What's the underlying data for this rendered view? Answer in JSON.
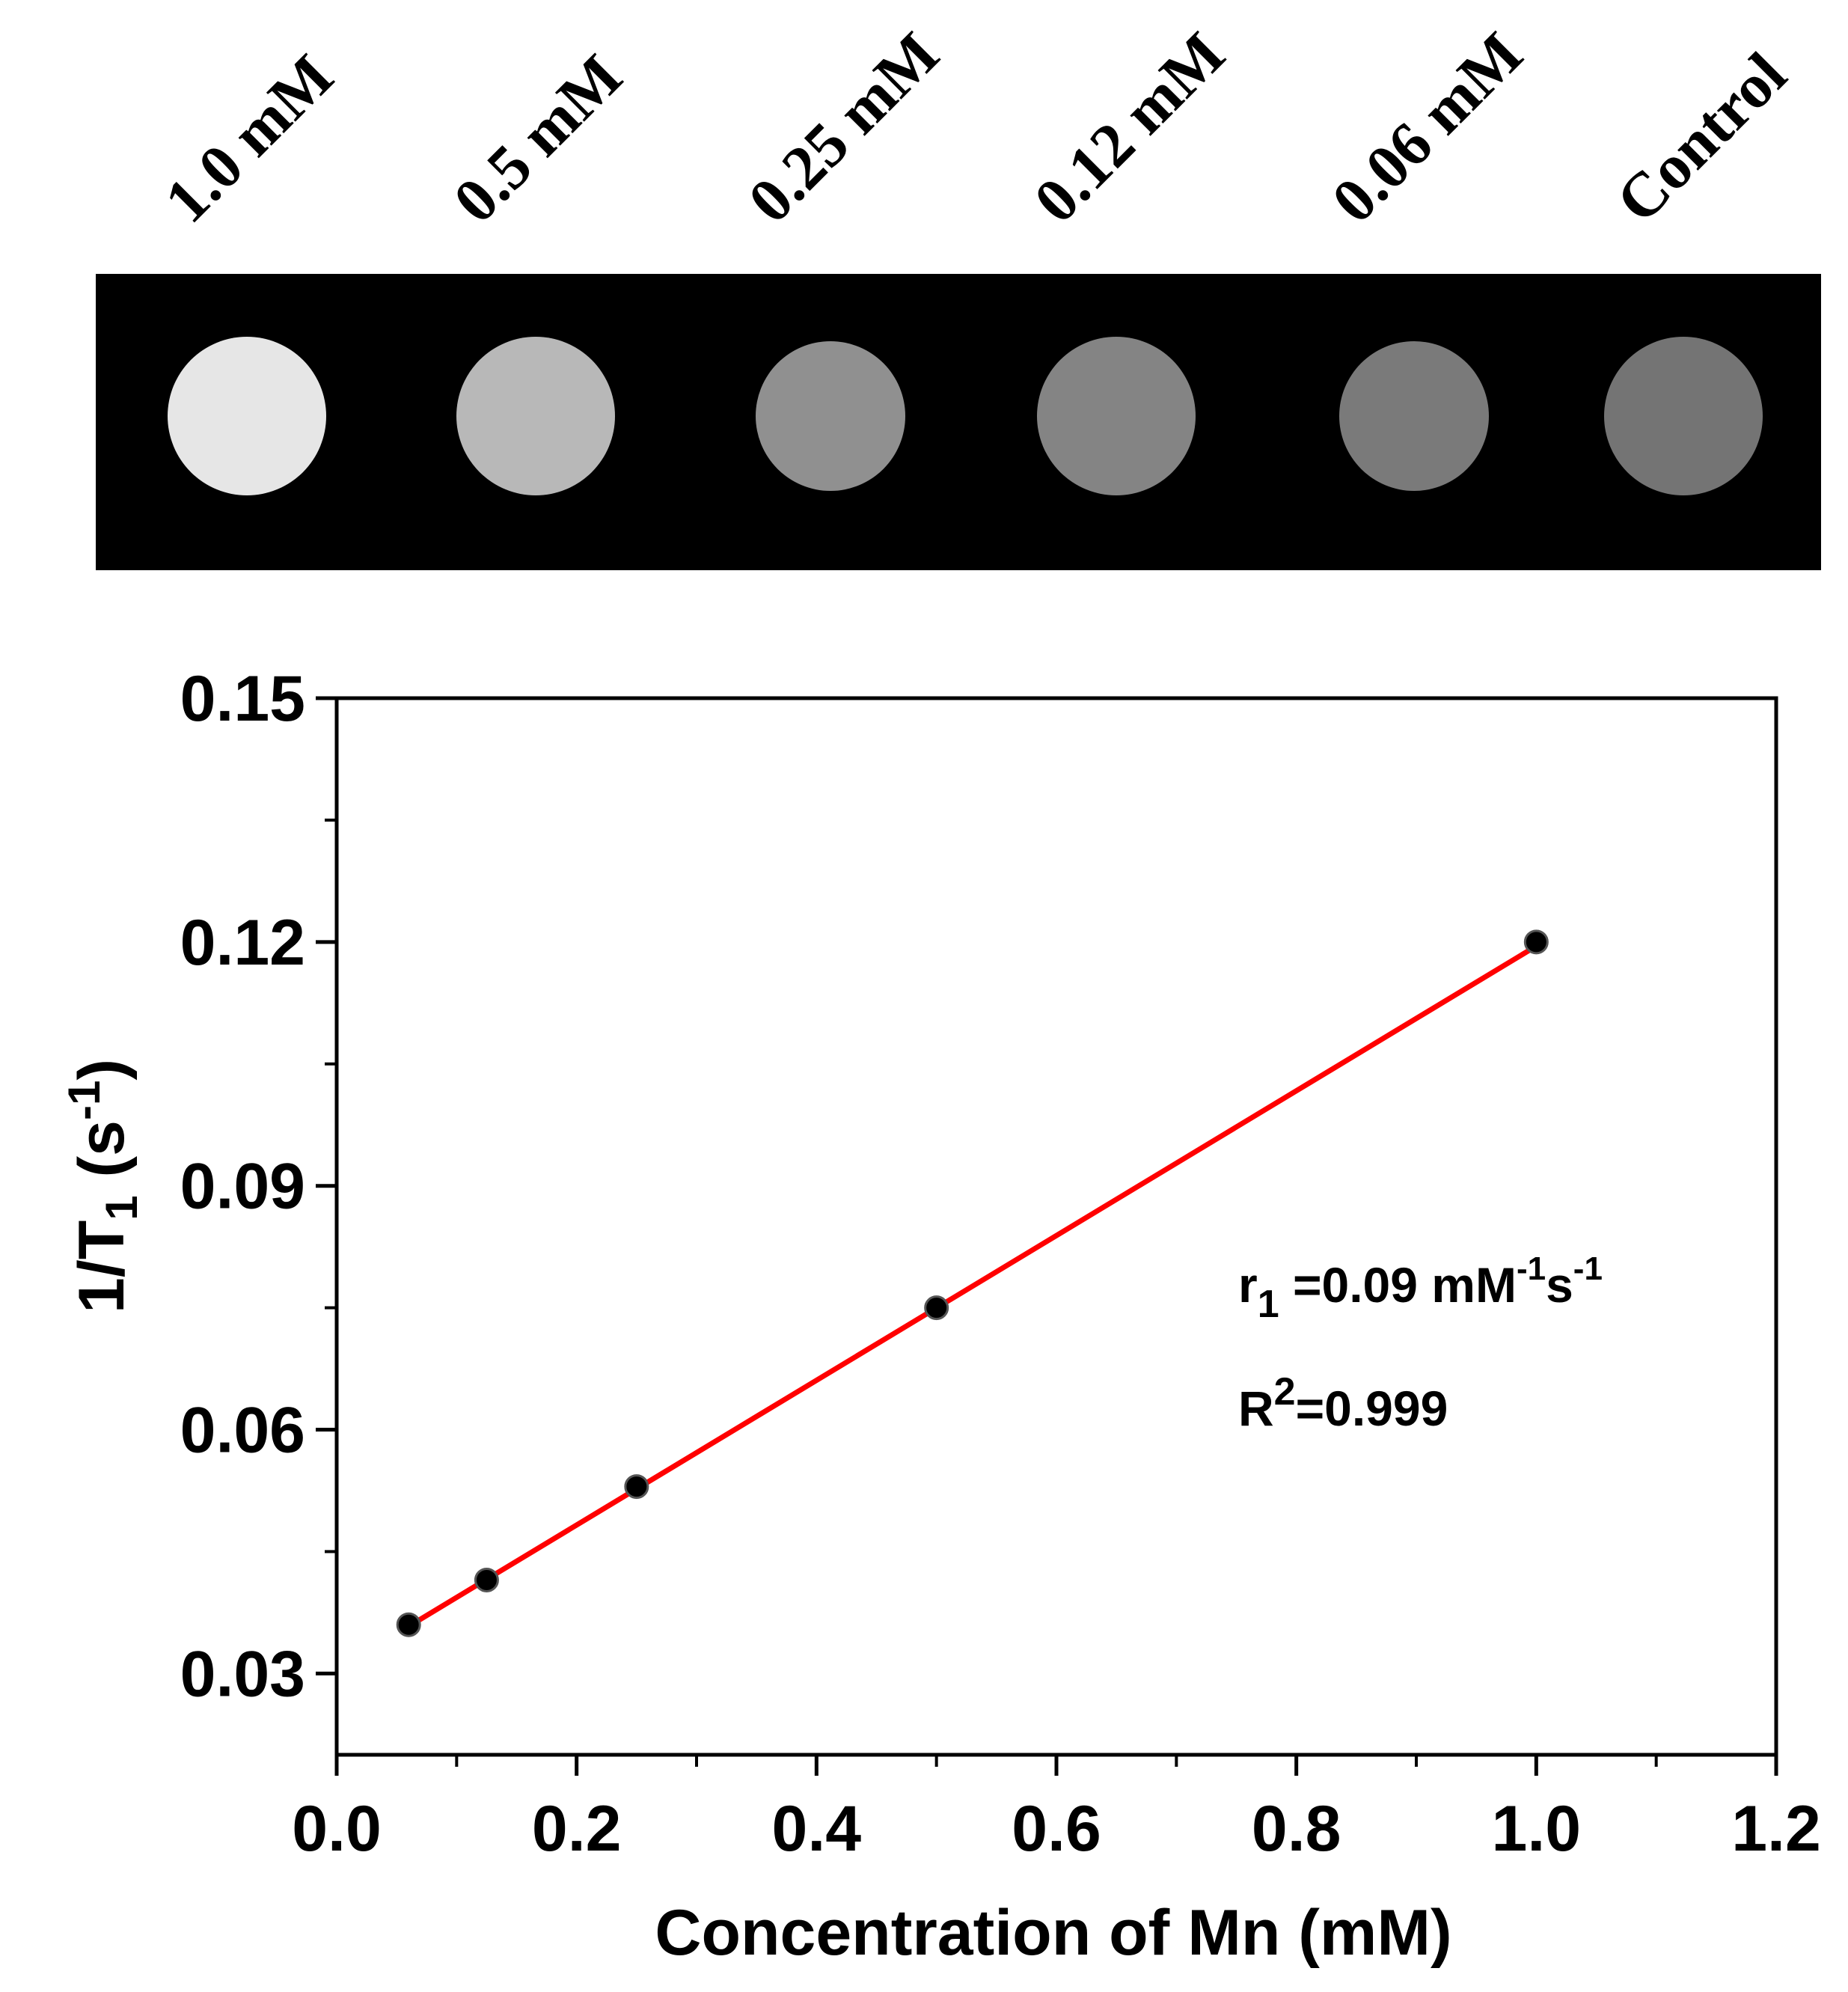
{
  "mri_panel": {
    "samples": [
      {
        "label": "1.0 mM",
        "brightness": "#e6e6e6"
      },
      {
        "label": "0.5 mM",
        "brightness": "#b8b8b8"
      },
      {
        "label": "0.25 mM",
        "brightness": "#909090"
      },
      {
        "label": "0.12 mM",
        "brightness": "#848484"
      },
      {
        "label": "0.06 mM",
        "brightness": "#7a7a7a"
      },
      {
        "label": "Control",
        "brightness": "#747474"
      }
    ]
  },
  "chart_data": {
    "type": "scatter",
    "xlabel": "Concentration of Mn (mM)",
    "ylabel": "1/T1 (s-1)",
    "xlim": [
      0.0,
      1.2
    ],
    "ylim": [
      0.02,
      0.15
    ],
    "xticks": [
      "0.0",
      "0.2",
      "0.4",
      "0.6",
      "0.8",
      "1.0",
      "1.2"
    ],
    "yticks": [
      "0.03",
      "0.06",
      "0.09",
      "0.12",
      "0.15"
    ],
    "series": [
      {
        "x": [
          0.06,
          0.125,
          0.25,
          0.5,
          1.0
        ],
        "y": [
          0.036,
          0.0415,
          0.053,
          0.075,
          0.12
        ],
        "marker_color": "#000000"
      }
    ],
    "fit_line": {
      "color": "#ff0000",
      "x": [
        0.06,
        1.0
      ],
      "y": [
        0.0358,
        0.1195
      ]
    },
    "annotations": {
      "relaxivity": "r1 =0.09 mM-1s-1",
      "r_squared": "R2=0.999"
    },
    "grid": false
  }
}
